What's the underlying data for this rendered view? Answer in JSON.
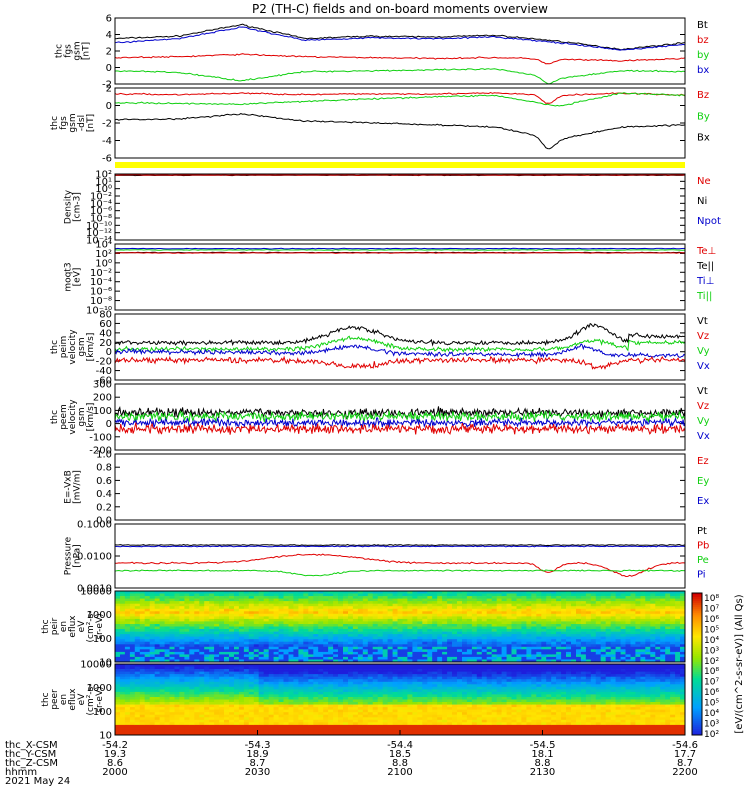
{
  "title": "P2 (TH-C) fields and on-board moments overview",
  "colors": {
    "black": "#000000",
    "red": "#e00000",
    "green": "#10d010",
    "blue": "#0000cc",
    "yellow": "#ffff00"
  },
  "chart_data": [
    {
      "id": "fgs",
      "type": "line",
      "ylabel": [
        "thc",
        "fgs",
        "gsm",
        "[nT]"
      ],
      "ylim": [
        -2,
        6
      ],
      "yticks": [
        "6",
        "4",
        "2",
        "0",
        "-2"
      ],
      "series": [
        {
          "name": "Bt",
          "color": "black",
          "approx": [
            3.5,
            3.8,
            5.2,
            3.5,
            3.8,
            3.7,
            3.9,
            3.2,
            2.2,
            3.0
          ]
        },
        {
          "name": "bz",
          "color": "red",
          "approx": [
            1.2,
            1.3,
            1.6,
            1.3,
            1.2,
            1.1,
            1.2,
            1.0,
            0.8,
            1.1
          ]
        },
        {
          "name": "by",
          "color": "green",
          "approx": [
            -0.4,
            -0.6,
            -1.6,
            -0.5,
            -0.4,
            -0.3,
            -0.2,
            -1.3,
            -0.4,
            -0.5
          ]
        },
        {
          "name": "bx",
          "color": "blue",
          "approx": [
            3.0,
            3.5,
            4.9,
            3.3,
            3.6,
            3.5,
            3.7,
            3.0,
            2.1,
            2.8
          ]
        }
      ]
    },
    {
      "id": "fgs_dsl",
      "type": "line",
      "ylabel": [
        "thc",
        "fgs",
        "gsm",
        "-dsl",
        "[nT]"
      ],
      "ylim": [
        -7,
        2.5
      ],
      "yticks": [
        "2",
        "0",
        "-2",
        "-4",
        "-6"
      ],
      "series": [
        {
          "name": "Bz",
          "color": "red",
          "approx": [
            1.7,
            1.6,
            1.8,
            1.6,
            1.7,
            1.7,
            1.8,
            1.5,
            1.8,
            1.5
          ]
        },
        {
          "name": "By",
          "color": "green",
          "approx": [
            0.5,
            0.4,
            0.3,
            0.7,
            1.0,
            1.3,
            1.5,
            0.0,
            1.8,
            1.5
          ]
        },
        {
          "name": "Bx",
          "color": "black",
          "approx": [
            -1.8,
            -1.7,
            -1.0,
            -2.0,
            -2.2,
            -2.5,
            -2.8,
            -4.5,
            -2.8,
            -2.5
          ]
        }
      ]
    },
    {
      "id": "density",
      "type": "line",
      "ylabel": [
        "Density",
        "[cm-3]"
      ],
      "yticks": [
        "10²",
        "10¹",
        "10⁰",
        "10⁻²",
        "10⁻⁴",
        "10⁻⁶",
        "10⁻⁸",
        "10⁻¹⁰",
        "10⁻¹²",
        "10⁻¹⁴"
      ],
      "scale": "log",
      "series": [
        {
          "name": "Ne",
          "color": "red"
        },
        {
          "name": "Ni",
          "color": "black"
        },
        {
          "name": "Npot",
          "color": "blue"
        }
      ]
    },
    {
      "id": "temp",
      "type": "line",
      "ylabel": [
        "moqt3",
        "[eV]"
      ],
      "yticks": [
        "10⁴",
        "10²",
        "10⁰",
        "10⁻²",
        "10⁻⁴",
        "10⁻⁶",
        "10⁻⁸",
        "10⁻¹⁰"
      ],
      "scale": "log",
      "series": [
        {
          "name": "Te⊥",
          "color": "red"
        },
        {
          "name": "Te||",
          "color": "black"
        },
        {
          "name": "Ti⊥",
          "color": "blue"
        },
        {
          "name": "Ti||",
          "color": "green"
        }
      ]
    },
    {
      "id": "peim",
      "type": "line",
      "ylabel": [
        "thc",
        "peim",
        "velocity",
        "gsm",
        "[km/s]"
      ],
      "ylim": [
        -60,
        90
      ],
      "yticks": [
        "80",
        "60",
        "40",
        "20",
        "0",
        "-20",
        "-40",
        "-60"
      ],
      "series": [
        {
          "name": "Vt",
          "color": "black"
        },
        {
          "name": "Vz",
          "color": "red"
        },
        {
          "name": "Vy",
          "color": "green"
        },
        {
          "name": "Vx",
          "color": "blue"
        }
      ]
    },
    {
      "id": "peem",
      "type": "line",
      "ylabel": [
        "thc",
        "peem",
        "velocity",
        "gsm",
        "[km/s]"
      ],
      "ylim": [
        -220,
        310
      ],
      "yticks": [
        "300",
        "200",
        "100",
        "0",
        "-100",
        "-200"
      ],
      "series": [
        {
          "name": "Vt",
          "color": "black"
        },
        {
          "name": "Vz",
          "color": "red"
        },
        {
          "name": "Vy",
          "color": "green"
        },
        {
          "name": "Vx",
          "color": "blue"
        }
      ]
    },
    {
      "id": "efield",
      "type": "line",
      "ylabel": [
        "E=-VxB",
        "[mV/m]"
      ],
      "ylim": [
        0,
        1
      ],
      "yticks": [
        "1.0",
        "0.8",
        "0.6",
        "0.4",
        "0.2",
        "0.0"
      ],
      "series": [
        {
          "name": "Ez",
          "color": "red"
        },
        {
          "name": "Ey",
          "color": "green"
        },
        {
          "name": "Ex",
          "color": "blue"
        }
      ]
    },
    {
      "id": "pressure",
      "type": "line",
      "ylabel": [
        "Pressure",
        "[nPa]"
      ],
      "yticks": [
        "0.1000",
        "0.0100",
        "0.0010"
      ],
      "scale": "log",
      "series": [
        {
          "name": "Pt",
          "color": "black"
        },
        {
          "name": "Pb",
          "color": "red"
        },
        {
          "name": "Pe",
          "color": "green"
        },
        {
          "name": "Pi",
          "color": "blue"
        }
      ]
    },
    {
      "id": "peir",
      "type": "heatmap",
      "ylabel": [
        "thc",
        "peir",
        "en",
        "eflux",
        "eV",
        "(cm²-s-",
        "sr-eV)"
      ],
      "yticks": [
        "10000",
        "1000",
        "100",
        "10"
      ]
    },
    {
      "id": "peer",
      "type": "heatmap",
      "ylabel": [
        "thc",
        "peer",
        "en",
        "eflux",
        "eV",
        "(cm²-s-",
        "sr-eV)"
      ],
      "yticks": [
        "10000",
        "1000",
        "100",
        "10"
      ]
    }
  ],
  "colorbar": {
    "ticks": [
      "10⁸",
      "10⁷",
      "10⁶",
      "10⁵",
      "10⁴",
      "10³",
      "10²",
      "10⁸",
      "10⁷",
      "10⁶",
      "10⁵",
      "10⁴",
      "10³",
      "10²"
    ],
    "label": "[eV/(cm^2-s-sr-eV)] (All Qs)"
  },
  "xaxis": {
    "rows": [
      {
        "label": "thc_X-CSM",
        "values": [
          "-54.2",
          "-54.3",
          "-54.4",
          "-54.5",
          "-54.6"
        ]
      },
      {
        "label": "thc_Y-CSM",
        "values": [
          "19.3",
          "18.9",
          "18.5",
          "18.1",
          "17.7"
        ]
      },
      {
        "label": "thc_Z-CSM",
        "values": [
          "8.6",
          "8.7",
          "8.8",
          "8.8",
          "8.7"
        ]
      },
      {
        "label": "hhmm",
        "values": [
          "2000",
          "2030",
          "2100",
          "2130",
          "2200"
        ]
      }
    ],
    "date": "2021 May 24"
  }
}
